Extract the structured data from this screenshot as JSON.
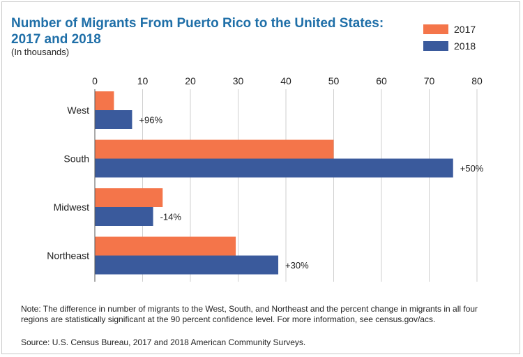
{
  "chart_data": {
    "type": "bar",
    "orientation": "horizontal",
    "title": "Number of Migrants From Puerto Rico to the United States: 2017 and 2018",
    "subtitle": "(In thousands)",
    "categories": [
      "West",
      "South",
      "Midwest",
      "Northeast"
    ],
    "series": [
      {
        "name": "2017",
        "color": "#f4754a",
        "values": [
          4,
          50,
          14.2,
          29.5
        ]
      },
      {
        "name": "2018",
        "color": "#3a5a9c",
        "values": [
          7.8,
          75,
          12.2,
          38.4
        ]
      }
    ],
    "annotations": [
      "+96%",
      "+50%",
      "-14%",
      "+30%"
    ],
    "xlim": [
      0,
      80
    ],
    "x_ticks": [
      "0",
      "10",
      "20",
      "30",
      "40",
      "50",
      "60",
      "70",
      "80"
    ],
    "grid": true,
    "legend_position": "top-right"
  },
  "note": "Note: The difference in number of migrants to the West, South, and Northeast and the percent change in migrants in all four regions are statistically significant at the 90 percent confidence level. For more information, see census.gov/acs.",
  "source": "Source: U.S. Census Bureau, 2017 and 2018 American Community Surveys."
}
